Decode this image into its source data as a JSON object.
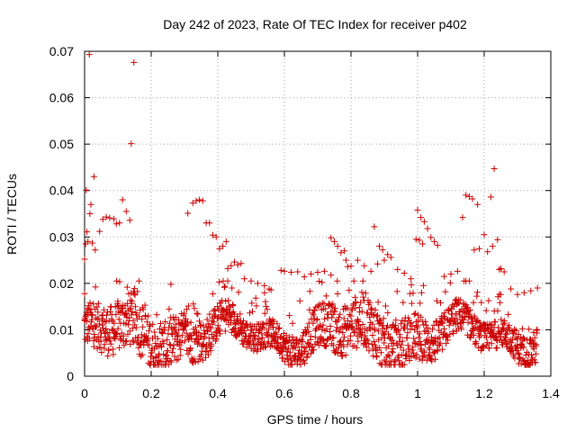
{
  "chart_data": {
    "type": "scatter",
    "title": "Day 242 of 2023, Rate Of TEC Index for receiver p402",
    "xlabel": "GPS time / hours",
    "ylabel": "ROTI / TECUs",
    "xlim": [
      0,
      1.4
    ],
    "ylim": [
      0,
      0.07
    ],
    "x_ticks": [
      "0",
      "0.2",
      "0.4",
      "0.6",
      "0.8",
      "1",
      "1.2",
      "1.4"
    ],
    "y_ticks": [
      "0",
      "0.01",
      "0.02",
      "0.03",
      "0.04",
      "0.05",
      "0.06",
      "0.07"
    ],
    "x_tick_values": [
      0,
      0.2,
      0.4,
      0.6,
      0.8,
      1.0,
      1.2,
      1.4
    ],
    "y_tick_values": [
      0,
      0.01,
      0.02,
      0.03,
      0.04,
      0.05,
      0.06,
      0.07
    ],
    "grid": true,
    "marker": "plus",
    "color": "#cc0000",
    "points": [
      [
        0.0,
        0.0252
      ],
      [
        0.0,
        0.0178
      ],
      [
        0.003,
        0.0285
      ],
      [
        0.005,
        0.0401
      ],
      [
        0.007,
        0.0311
      ],
      [
        0.01,
        0.029
      ],
      [
        0.014,
        0.0693
      ],
      [
        0.016,
        0.035
      ],
      [
        0.019,
        0.037
      ],
      [
        0.023,
        0.0287
      ],
      [
        0.028,
        0.043
      ],
      [
        0.032,
        0.0272
      ],
      [
        0.045,
        0.0312
      ],
      [
        0.055,
        0.0338
      ],
      [
        0.065,
        0.0343
      ],
      [
        0.075,
        0.0341
      ],
      [
        0.088,
        0.0339
      ],
      [
        0.095,
        0.0328
      ],
      [
        0.105,
        0.033
      ],
      [
        0.114,
        0.038
      ],
      [
        0.125,
        0.0355
      ],
      [
        0.136,
        0.0336
      ],
      [
        0.14,
        0.0501
      ],
      [
        0.148,
        0.0676
      ],
      [
        0.31,
        0.0351
      ],
      [
        0.325,
        0.0373
      ],
      [
        0.335,
        0.0378
      ],
      [
        0.345,
        0.038
      ],
      [
        0.355,
        0.0378
      ],
      [
        0.365,
        0.033
      ],
      [
        0.375,
        0.033
      ],
      [
        0.385,
        0.0304
      ],
      [
        0.395,
        0.03
      ],
      [
        0.405,
        0.0275
      ],
      [
        0.415,
        0.028
      ],
      [
        0.425,
        0.029
      ],
      [
        0.43,
        0.0232
      ],
      [
        0.44,
        0.0238
      ],
      [
        0.45,
        0.0246
      ],
      [
        0.46,
        0.024
      ],
      [
        0.47,
        0.0243
      ],
      [
        0.74,
        0.0298
      ],
      [
        0.75,
        0.029
      ],
      [
        0.76,
        0.028
      ],
      [
        0.77,
        0.0266
      ],
      [
        0.78,
        0.027
      ],
      [
        0.785,
        0.025
      ],
      [
        0.79,
        0.0236
      ],
      [
        0.87,
        0.0322
      ],
      [
        0.885,
        0.028
      ],
      [
        0.895,
        0.0272
      ],
      [
        0.91,
        0.0262
      ],
      [
        0.995,
        0.0295
      ],
      [
        1.0,
        0.0358
      ],
      [
        1.005,
        0.0293
      ],
      [
        1.01,
        0.0342
      ],
      [
        1.015,
        0.0285
      ],
      [
        1.02,
        0.0333
      ],
      [
        1.03,
        0.0318
      ],
      [
        1.04,
        0.0299
      ],
      [
        1.05,
        0.029
      ],
      [
        1.06,
        0.0282
      ],
      [
        1.145,
        0.039
      ],
      [
        1.155,
        0.0387
      ],
      [
        1.165,
        0.0382
      ],
      [
        1.135,
        0.0342
      ],
      [
        1.18,
        0.037
      ],
      [
        1.17,
        0.0272
      ],
      [
        1.185,
        0.0275
      ],
      [
        1.2,
        0.0305
      ],
      [
        1.21,
        0.0268
      ],
      [
        1.22,
        0.0386
      ],
      [
        1.225,
        0.028
      ],
      [
        1.23,
        0.0447
      ],
      [
        1.24,
        0.0294
      ],
      [
        1.245,
        0.023
      ],
      [
        1.25,
        0.0232
      ],
      [
        1.26,
        0.0225
      ],
      [
        0.48,
        0.021
      ],
      [
        0.5,
        0.0205
      ],
      [
        0.52,
        0.02
      ],
      [
        0.54,
        0.0195
      ],
      [
        0.56,
        0.0186
      ],
      [
        0.59,
        0.0228
      ],
      [
        0.6,
        0.0226
      ],
      [
        0.62,
        0.0224
      ],
      [
        0.64,
        0.0225
      ],
      [
        0.66,
        0.0214
      ],
      [
        0.68,
        0.022
      ],
      [
        0.7,
        0.0224
      ],
      [
        0.72,
        0.0226
      ],
      [
        0.74,
        0.0218
      ],
      [
        0.8,
        0.0237
      ],
      [
        0.82,
        0.025
      ],
      [
        0.84,
        0.0238
      ],
      [
        0.86,
        0.0226
      ],
      [
        0.88,
        0.0242
      ],
      [
        0.9,
        0.025
      ],
      [
        0.92,
        0.0256
      ],
      [
        0.94,
        0.023
      ],
      [
        0.96,
        0.0222
      ],
      [
        0.98,
        0.021
      ],
      [
        1.08,
        0.0215
      ],
      [
        1.1,
        0.022
      ],
      [
        1.12,
        0.0226
      ],
      [
        1.28,
        0.0188
      ],
      [
        1.3,
        0.0176
      ],
      [
        1.32,
        0.018
      ],
      [
        1.34,
        0.0184
      ],
      [
        1.36,
        0.019
      ]
    ]
  }
}
